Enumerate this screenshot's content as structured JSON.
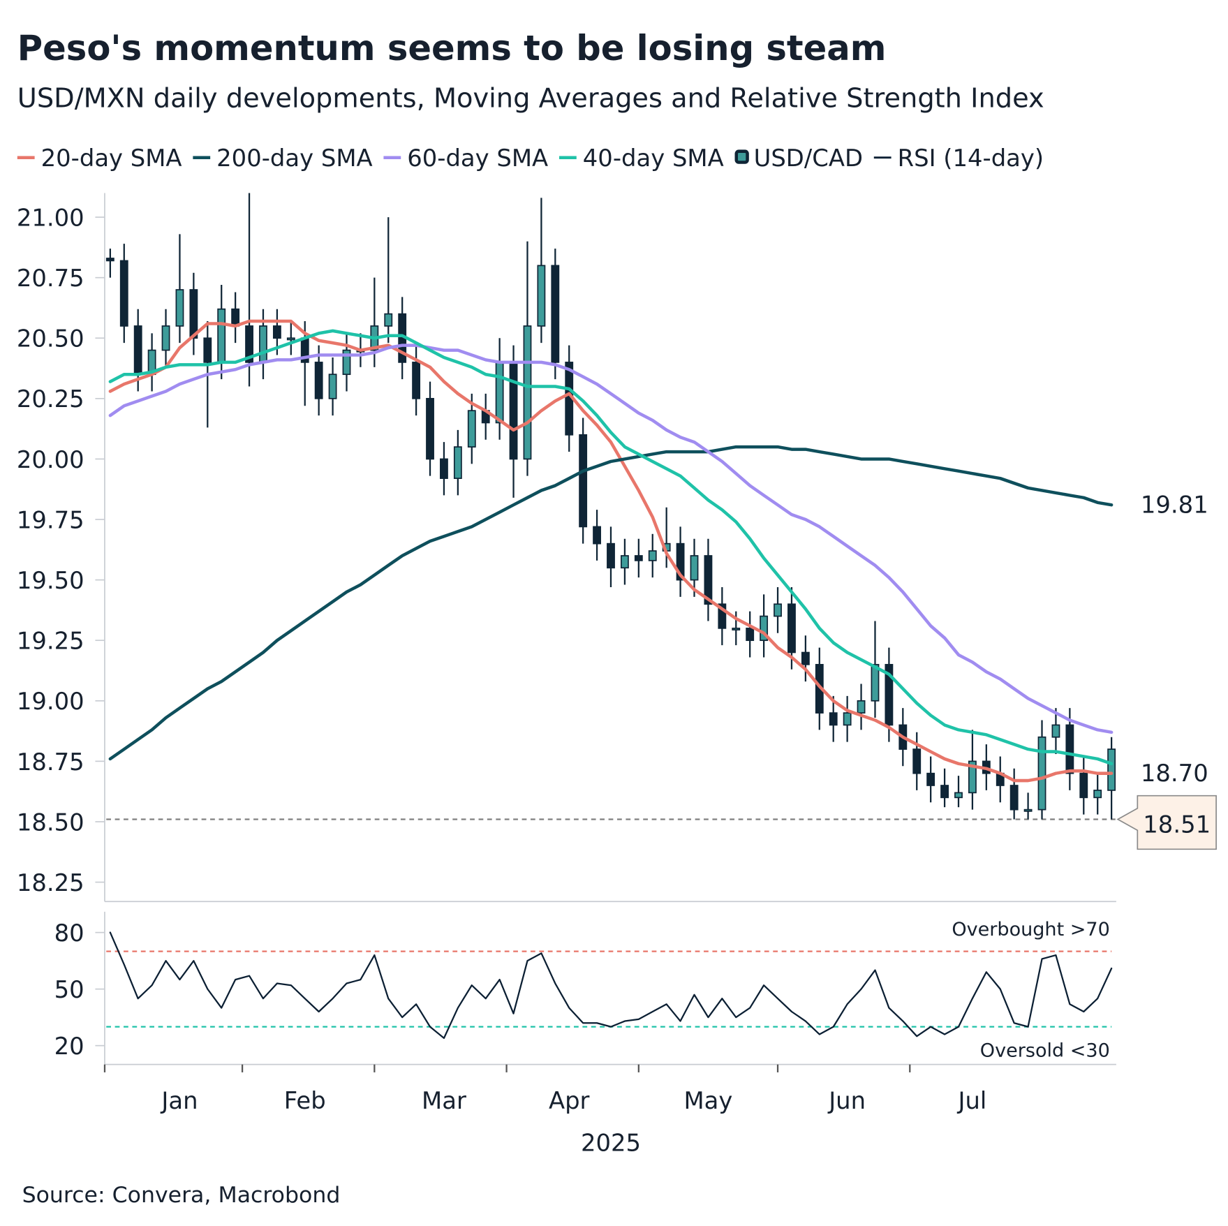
{
  "source": "Source: Convera, Macrobond",
  "chart_data": [
    {
      "type": "candlestick",
      "title": "Peso's momentum seems to be losing steam",
      "subtitle": "USD/MXN daily developments, Moving Averages and Relative Strength Index",
      "ylim": [
        18.17,
        21.1
      ],
      "yticks": [
        {
          "value": 18.25,
          "label": "18.25"
        },
        {
          "value": 18.5,
          "label": "18.50"
        },
        {
          "value": 18.75,
          "label": "18.75"
        },
        {
          "value": 19,
          "label": "19.00"
        },
        {
          "value": 19.25,
          "label": "19.25"
        },
        {
          "value": 19.5,
          "label": "19.50"
        },
        {
          "value": 19.75,
          "label": "19.75"
        },
        {
          "value": 20,
          "label": "20.00"
        },
        {
          "value": 20.25,
          "label": "20.25"
        },
        {
          "value": 20.5,
          "label": "20.50"
        },
        {
          "value": 20.75,
          "label": "20.75"
        },
        {
          "value": 21,
          "label": "21.00"
        }
      ],
      "series": [
        {
          "name": "20-day SMA",
          "type": "line",
          "color": "#e8766a",
          "values": [
            20.28,
            20.31,
            20.33,
            20.35,
            20.38,
            20.46,
            20.51,
            20.56,
            20.56,
            20.55,
            20.57,
            20.57,
            20.57,
            20.57,
            20.52,
            20.49,
            20.48,
            20.47,
            20.45,
            20.46,
            20.47,
            20.44,
            20.41,
            20.38,
            20.32,
            20.27,
            20.23,
            20.2,
            20.16,
            20.12,
            20.15,
            20.2,
            20.24,
            20.27,
            20.2,
            20.14,
            20.07,
            19.97,
            19.87,
            19.76,
            19.61,
            19.52,
            19.46,
            19.42,
            19.38,
            19.34,
            19.31,
            19.28,
            19.22,
            19.18,
            19.13,
            19.06,
            19,
            18.96,
            18.94,
            18.92,
            18.89,
            18.85,
            18.82,
            18.79,
            18.76,
            18.74,
            18.73,
            18.72,
            18.7,
            18.67,
            18.67,
            18.68,
            18.7,
            18.71,
            18.71,
            18.7,
            18.7
          ]
        },
        {
          "name": "200-day SMA",
          "type": "line",
          "color": "#0e4f5c",
          "values": [
            18.76,
            18.8,
            18.84,
            18.88,
            18.93,
            18.97,
            19.01,
            19.05,
            19.08,
            19.12,
            19.16,
            19.2,
            19.25,
            19.29,
            19.33,
            19.37,
            19.41,
            19.45,
            19.48,
            19.52,
            19.56,
            19.6,
            19.63,
            19.66,
            19.68,
            19.7,
            19.72,
            19.75,
            19.78,
            19.81,
            19.84,
            19.87,
            19.89,
            19.92,
            19.95,
            19.97,
            19.99,
            20,
            20.01,
            20.02,
            20.03,
            20.03,
            20.03,
            20.03,
            20.04,
            20.05,
            20.05,
            20.05,
            20.05,
            20.04,
            20.04,
            20.03,
            20.02,
            20.01,
            20,
            20,
            20,
            19.99,
            19.98,
            19.97,
            19.96,
            19.95,
            19.94,
            19.93,
            19.92,
            19.9,
            19.88,
            19.87,
            19.86,
            19.85,
            19.84,
            19.82,
            19.81
          ]
        },
        {
          "name": "60-day SMA",
          "type": "line",
          "color": "#a08cf0",
          "values": [
            20.18,
            20.22,
            20.24,
            20.26,
            20.28,
            20.31,
            20.33,
            20.35,
            20.36,
            20.37,
            20.39,
            20.4,
            20.41,
            20.41,
            20.42,
            20.43,
            20.43,
            20.43,
            20.43,
            20.44,
            20.46,
            20.47,
            20.47,
            20.46,
            20.45,
            20.45,
            20.43,
            20.41,
            20.4,
            20.4,
            20.4,
            20.4,
            20.39,
            20.37,
            20.34,
            20.31,
            20.27,
            20.23,
            20.19,
            20.16,
            20.12,
            20.09,
            20.07,
            20.03,
            19.99,
            19.94,
            19.89,
            19.85,
            19.81,
            19.77,
            19.75,
            19.72,
            19.68,
            19.64,
            19.6,
            19.56,
            19.51,
            19.45,
            19.38,
            19.31,
            19.26,
            19.19,
            19.16,
            19.12,
            19.09,
            19.05,
            19.01,
            18.98,
            18.95,
            18.92,
            18.9,
            18.88,
            18.87
          ]
        },
        {
          "name": "40-day SMA",
          "type": "line",
          "color": "#1fc2a8",
          "values": [
            20.32,
            20.35,
            20.35,
            20.36,
            20.38,
            20.39,
            20.39,
            20.39,
            20.4,
            20.4,
            20.42,
            20.44,
            20.46,
            20.48,
            20.5,
            20.52,
            20.53,
            20.52,
            20.51,
            20.5,
            20.51,
            20.51,
            20.48,
            20.45,
            20.42,
            20.4,
            20.38,
            20.35,
            20.34,
            20.32,
            20.3,
            20.3,
            20.3,
            20.29,
            20.24,
            20.18,
            20.11,
            20.05,
            20.02,
            19.99,
            19.96,
            19.93,
            19.88,
            19.83,
            19.79,
            19.74,
            19.67,
            19.59,
            19.52,
            19.45,
            19.38,
            19.3,
            19.24,
            19.2,
            19.17,
            19.14,
            19.11,
            19.05,
            18.99,
            18.94,
            18.9,
            18.88,
            18.87,
            18.86,
            18.84,
            18.82,
            18.8,
            18.79,
            18.79,
            18.78,
            18.77,
            18.76,
            18.74
          ]
        },
        {
          "name": "USD/CAD",
          "type": "candlestick",
          "color": "#0f2536",
          "up_color": "#3e9c9a",
          "down_color": "#0f2536",
          "open": [
            20.83,
            20.82,
            20.55,
            20.35,
            20.45,
            20.55,
            20.7,
            20.5,
            20.4,
            20.62,
            20.55,
            20.4,
            20.55,
            20.5,
            20.5,
            20.4,
            20.25,
            20.35,
            20.45,
            20.45,
            20.55,
            20.6,
            20.4,
            20.25,
            20,
            19.92,
            20.05,
            20.2,
            20.15,
            20.4,
            20,
            20.55,
            20.8,
            20.4,
            20.1,
            19.72,
            19.65,
            19.55,
            19.6,
            19.58,
            19.62,
            19.65,
            19.5,
            19.6,
            19.4,
            19.3,
            19.3,
            19.25,
            19.35,
            19.4,
            19.2,
            19.15,
            18.95,
            18.9,
            18.95,
            19,
            19.15,
            18.9,
            18.8,
            18.7,
            18.65,
            18.6,
            18.62,
            18.75,
            18.7,
            18.65,
            18.55,
            18.55,
            18.85,
            18.9,
            18.7,
            18.6,
            18.63
          ],
          "high": [
            20.87,
            20.89,
            20.62,
            20.52,
            20.62,
            20.93,
            20.77,
            20.57,
            20.72,
            20.69,
            21.1,
            20.62,
            20.62,
            20.57,
            20.57,
            20.47,
            20.42,
            20.52,
            20.52,
            20.75,
            21,
            20.67,
            20.47,
            20.32,
            20.07,
            20.12,
            20.27,
            20.27,
            20.5,
            20.47,
            20.9,
            21.08,
            20.87,
            20.47,
            20.17,
            19.79,
            19.72,
            19.67,
            19.67,
            19.69,
            19.8,
            19.72,
            19.67,
            19.67,
            19.47,
            19.37,
            19.37,
            19.44,
            19.47,
            19.47,
            19.27,
            19.22,
            19.02,
            19.02,
            19.07,
            19.33,
            19.22,
            18.97,
            18.87,
            18.77,
            18.72,
            18.69,
            18.88,
            18.82,
            18.77,
            18.72,
            18.62,
            18.92,
            18.97,
            18.97,
            18.77,
            18.7,
            18.85
          ],
          "low": [
            20.75,
            20.48,
            20.28,
            20.28,
            20.38,
            20.48,
            20.43,
            20.13,
            20.33,
            20.48,
            20.3,
            20.33,
            20.43,
            20.43,
            20.22,
            20.18,
            20.18,
            20.28,
            20.38,
            20.38,
            20.48,
            20.33,
            20.18,
            19.93,
            19.85,
            19.85,
            19.98,
            20.08,
            20.08,
            19.84,
            19.93,
            20.48,
            20.33,
            20.03,
            19.65,
            19.58,
            19.47,
            19.48,
            19.51,
            19.51,
            19.55,
            19.43,
            19.43,
            19.33,
            19.23,
            19.23,
            19.18,
            19.18,
            19.28,
            19.13,
            19.08,
            18.88,
            18.83,
            18.83,
            18.88,
            18.93,
            18.83,
            18.73,
            18.63,
            18.58,
            18.56,
            18.56,
            18.55,
            18.63,
            18.58,
            18.51,
            18.51,
            18.51,
            18.78,
            18.63,
            18.53,
            18.53,
            18.51
          ],
          "close": [
            20.82,
            20.55,
            20.35,
            20.45,
            20.55,
            20.7,
            20.5,
            20.4,
            20.62,
            20.55,
            20.4,
            20.55,
            20.5,
            20.5,
            20.4,
            20.25,
            20.35,
            20.45,
            20.45,
            20.55,
            20.6,
            20.4,
            20.25,
            20,
            19.92,
            20.05,
            20.2,
            20.15,
            20.4,
            20,
            20.55,
            20.8,
            20.4,
            20.1,
            19.72,
            19.65,
            19.55,
            19.6,
            19.58,
            19.62,
            19.65,
            19.5,
            19.6,
            19.4,
            19.3,
            19.3,
            19.25,
            19.35,
            19.4,
            19.2,
            19.15,
            18.95,
            18.9,
            18.95,
            19,
            19.15,
            18.9,
            18.8,
            18.7,
            18.65,
            18.6,
            18.62,
            18.75,
            18.7,
            18.65,
            18.55,
            18.55,
            18.85,
            18.9,
            18.7,
            18.6,
            18.63,
            18.8
          ]
        }
      ],
      "annotations": [
        {
          "value": 19.81,
          "label": "19.81",
          "color": "#e8766a",
          "style": "text"
        },
        {
          "value": 18.7,
          "label": "18.70",
          "color": "#b4b9c2",
          "style": "text"
        },
        {
          "value": 18.51,
          "label": "18.51",
          "color": "#7f7f7f",
          "style": "callout"
        }
      ]
    },
    {
      "type": "line",
      "xlabel": "2025",
      "categories": [
        null,
        null,
        null,
        null,
        null,
        "Jan",
        null,
        null,
        null,
        null,
        null,
        null,
        null,
        null,
        "Feb",
        null,
        null,
        null,
        null,
        null,
        null,
        null,
        null,
        null,
        "Mar",
        null,
        null,
        null,
        null,
        null,
        null,
        null,
        null,
        "Apr",
        null,
        null,
        null,
        null,
        null,
        null,
        null,
        null,
        null,
        "May",
        null,
        null,
        null,
        null,
        null,
        null,
        null,
        null,
        null,
        "Jun",
        null,
        null,
        null,
        null,
        null,
        null,
        null,
        null,
        "Jul",
        null,
        null,
        null,
        null,
        null,
        null,
        null,
        null,
        null,
        null
      ],
      "ylim": [
        10,
        91
      ],
      "yticks": [
        20,
        50,
        80
      ],
      "series": [
        {
          "name": "RSI (14-day)",
          "color": "#0b1f33",
          "values": [
            80,
            63,
            45,
            52,
            65,
            55,
            65,
            50,
            40,
            55,
            57,
            45,
            53,
            52,
            45,
            38,
            45,
            53,
            55,
            68,
            45,
            35,
            42,
            30,
            24,
            40,
            52,
            45,
            55,
            37,
            65,
            69,
            53,
            40,
            32,
            32,
            30,
            33,
            34,
            38,
            42,
            33,
            47,
            35,
            45,
            35,
            40,
            52,
            45,
            38,
            33,
            26,
            30,
            42,
            50,
            60,
            40,
            33,
            25,
            30,
            26,
            30,
            45,
            59,
            50,
            32,
            30,
            66,
            68,
            42,
            38,
            45,
            61
          ]
        }
      ],
      "reference_lines": [
        {
          "value": 70,
          "label": "Overbought >70",
          "color": "#e8766a",
          "label_position": "above"
        },
        {
          "value": 30,
          "label": "Oversold <30",
          "color": "#1fc2a8",
          "label_position": "below"
        }
      ]
    }
  ]
}
